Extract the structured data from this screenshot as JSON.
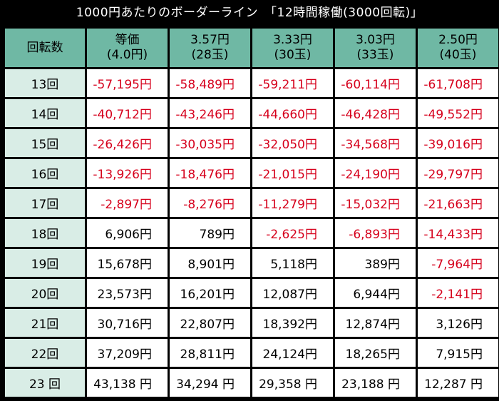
{
  "title": "1000円あたりのボーダーライン　「12時間稼働(3000回転)」",
  "header": {
    "rotation_label": "回転数",
    "columns": [
      {
        "line1": "等価",
        "line2": "(4.0円)"
      },
      {
        "line1": "3.57円",
        "line2": "(28玉)"
      },
      {
        "line1": "3.33円",
        "line2": "(30玉)"
      },
      {
        "line1": "3.03円",
        "line2": "(33玉)"
      },
      {
        "line1": "2.50円",
        "line2": "(40玉)"
      }
    ]
  },
  "rows": [
    {
      "label": "13回",
      "values": [
        "-57,195円",
        "-58,489円",
        "-59,211円",
        "-60,114円",
        "-61,708円"
      ]
    },
    {
      "label": "14回",
      "values": [
        "-40,712円",
        "-43,246円",
        "-44,660円",
        "-46,428円",
        "-49,552円"
      ]
    },
    {
      "label": "15回",
      "values": [
        "-26,426円",
        "-30,035円",
        "-32,050円",
        "-34,568円",
        "-39,016円"
      ]
    },
    {
      "label": "16回",
      "values": [
        "-13,926円",
        "-18,476円",
        "-21,015円",
        "-24,190円",
        "-29,797円"
      ]
    },
    {
      "label": "17回",
      "values": [
        "-2,897円",
        "-8,276円",
        "-11,279円",
        "-15,032円",
        "-21,663円"
      ]
    },
    {
      "label": "18回",
      "values": [
        "6,906円",
        "789円",
        "-2,625円",
        "-6,893円",
        "-14,433円"
      ]
    },
    {
      "label": "19回",
      "values": [
        "15,678円",
        "8,901円",
        "5,118円",
        "389円",
        "-7,964円"
      ]
    },
    {
      "label": "20回",
      "values": [
        "23,573円",
        "16,201円",
        "12,087円",
        "6,944円",
        "-2,141円"
      ]
    },
    {
      "label": "21回",
      "values": [
        "30,716円",
        "22,807円",
        "18,392円",
        "12,874円",
        "3,126円"
      ]
    },
    {
      "label": "22回",
      "values": [
        "37,209円",
        "28,811円",
        "24,124円",
        "18,265円",
        "7,915円"
      ]
    },
    {
      "label": "23 回",
      "values": [
        "43,138 円",
        "34,294 円",
        "29,358 円",
        "23,188 円",
        "12,287 円"
      ]
    }
  ],
  "colors": {
    "background": "#000000",
    "header_fill": "#6fb8a4",
    "label_fill": "#d9ede6",
    "value_fill": "#ffffff",
    "negative_text": "#d6001c",
    "positive_text": "#000000"
  }
}
